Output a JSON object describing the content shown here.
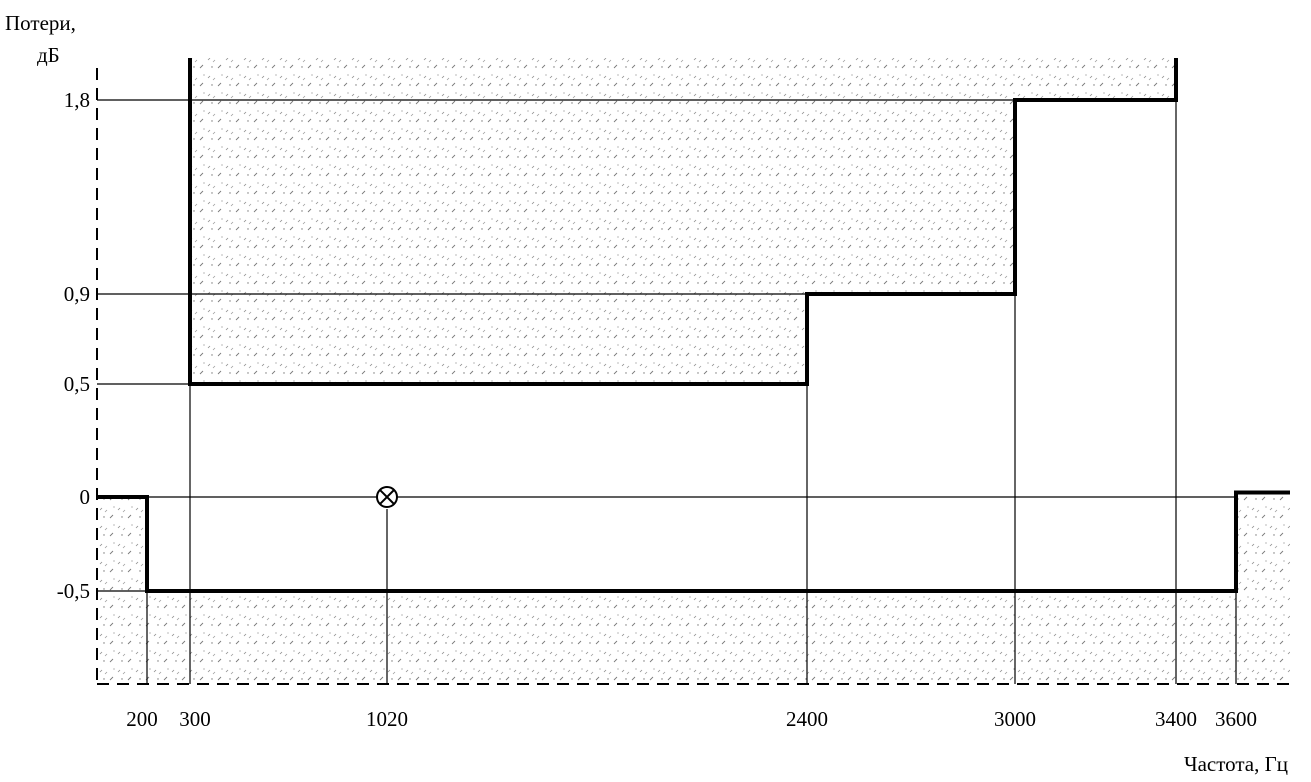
{
  "chart_data": {
    "type": "line",
    "title": "",
    "ylabel": [
      "Потери,",
      "дБ"
    ],
    "xlabel": "Частота, Гц",
    "x_ticks": [
      200,
      300,
      1020,
      2400,
      3000,
      3400,
      3600
    ],
    "x_tick_labels": [
      "200",
      "300",
      "1020",
      "2400",
      "3000",
      "3400",
      "3600"
    ],
    "y_ticks": [
      -0.5,
      0,
      0.5,
      0.9,
      1.8
    ],
    "y_tick_labels": [
      "-0,5",
      "0",
      "0,5",
      "0,9",
      "1,8"
    ],
    "grid": false,
    "series": [
      {
        "role": "upper-limit",
        "points": [
          [
            300,
            2.2
          ],
          [
            300,
            0.5
          ],
          [
            2400,
            0.5
          ],
          [
            2400,
            0.9
          ],
          [
            3000,
            0.9
          ],
          [
            3000,
            1.8
          ],
          [
            3400,
            1.8
          ],
          [
            3400,
            2.2
          ]
        ]
      },
      {
        "role": "lower-limit",
        "points": [
          [
            30,
            0
          ],
          [
            200,
            0
          ],
          [
            200,
            -0.5
          ],
          [
            3600,
            -0.5
          ],
          [
            3600,
            0.02
          ],
          [
            3800,
            0.02
          ]
        ]
      }
    ],
    "reference_point": {
      "x": 1020,
      "y": 0,
      "marker": "⊗"
    }
  },
  "style": {
    "limit_line_color": "#000000",
    "thin_line_color": "#000000",
    "hatch_color": "#8a8a8a"
  }
}
